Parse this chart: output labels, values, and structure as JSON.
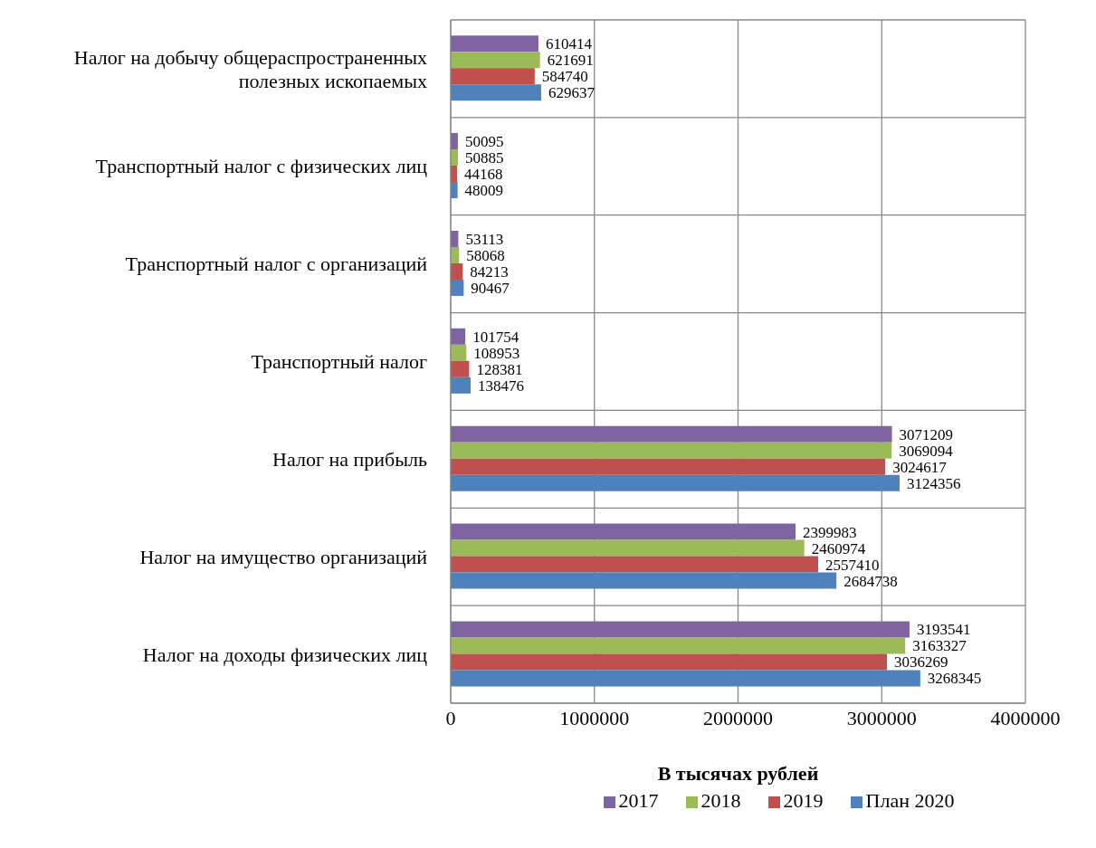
{
  "chart_data": {
    "type": "bar",
    "orientation": "horizontal",
    "xlabel": "В тысячах рублей",
    "categories": [
      "Налог на добычу общераспространенных полезных ископаемых",
      "Транспортный налог с физических лиц",
      "Транспортный налог с организаций",
      "Транспортный налог",
      "Налог на прибыль",
      "Налог на имущество организаций",
      "Налог на доходы физических лиц"
    ],
    "series": [
      {
        "name": "2017",
        "color": "#8064a2",
        "values": [
          610414,
          50095,
          53113,
          101754,
          3071209,
          2399983,
          3193541
        ]
      },
      {
        "name": "2018",
        "color": "#9bbb59",
        "values": [
          621691,
          50885,
          58068,
          108953,
          3069094,
          2460974,
          3163327
        ]
      },
      {
        "name": "2019",
        "color": "#c0504d",
        "values": [
          584740,
          44168,
          84213,
          128381,
          3024617,
          2557410,
          3036269
        ]
      },
      {
        "name": "План 2020",
        "color": "#4f81bd",
        "values": [
          629637,
          48009,
          90467,
          138476,
          3124356,
          2684738,
          3268345
        ]
      }
    ],
    "xlim": [
      0,
      4000000
    ],
    "xticks": [
      0,
      1000000,
      2000000,
      3000000,
      4000000
    ],
    "data_labels": true,
    "grid": true,
    "legend": "bottom"
  }
}
